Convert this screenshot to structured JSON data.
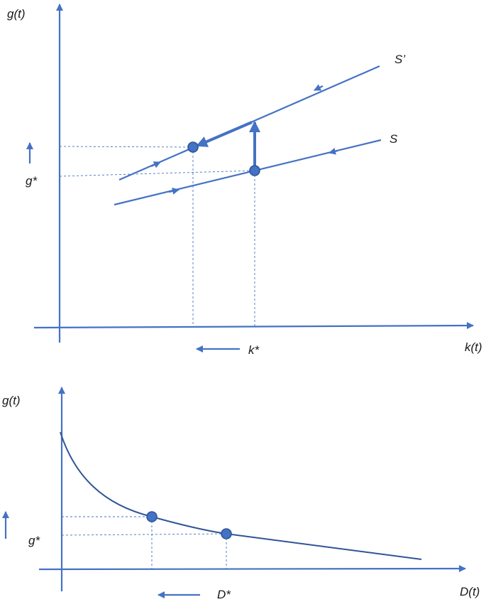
{
  "top": {
    "y_axis_label": "g(t)",
    "x_axis_label": "k(t)",
    "curve_s_label": "S",
    "curve_s_prime_label": "S’",
    "g_star_label": "g*",
    "k_star_label": "k*"
  },
  "bottom": {
    "y_axis_label": "g(t)",
    "x_axis_label": "D(t)",
    "g_star_label": "g*",
    "d_star_label": "D*"
  },
  "colors": {
    "line": "#4472c4",
    "point_edge": "#2f5597",
    "text": "#1a1a1a"
  }
}
